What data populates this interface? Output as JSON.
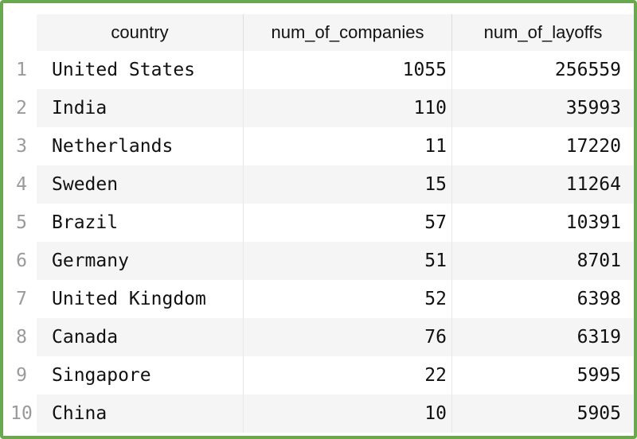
{
  "table": {
    "columns": [
      "country",
      "num_of_companies",
      "num_of_layoffs"
    ],
    "rows": [
      {
        "index": "1",
        "country": "United States",
        "num_of_companies": "1055",
        "num_of_layoffs": "256559"
      },
      {
        "index": "2",
        "country": "India",
        "num_of_companies": "110",
        "num_of_layoffs": "35993"
      },
      {
        "index": "3",
        "country": "Netherlands",
        "num_of_companies": "11",
        "num_of_layoffs": "17220"
      },
      {
        "index": "4",
        "country": "Sweden",
        "num_of_companies": "15",
        "num_of_layoffs": "11264"
      },
      {
        "index": "5",
        "country": "Brazil",
        "num_of_companies": "57",
        "num_of_layoffs": "10391"
      },
      {
        "index": "6",
        "country": "Germany",
        "num_of_companies": "51",
        "num_of_layoffs": "8701"
      },
      {
        "index": "7",
        "country": "United Kingdom",
        "num_of_companies": "52",
        "num_of_layoffs": "6398"
      },
      {
        "index": "8",
        "country": "Canada",
        "num_of_companies": "76",
        "num_of_layoffs": "6319"
      },
      {
        "index": "9",
        "country": "Singapore",
        "num_of_companies": "22",
        "num_of_layoffs": "5995"
      },
      {
        "index": "10",
        "country": "China",
        "num_of_companies": "10",
        "num_of_layoffs": "5905"
      }
    ]
  },
  "colors": {
    "frame_border": "#6aa84f",
    "stripe": "#f5f5f5",
    "index_text": "#9a9a9a"
  }
}
